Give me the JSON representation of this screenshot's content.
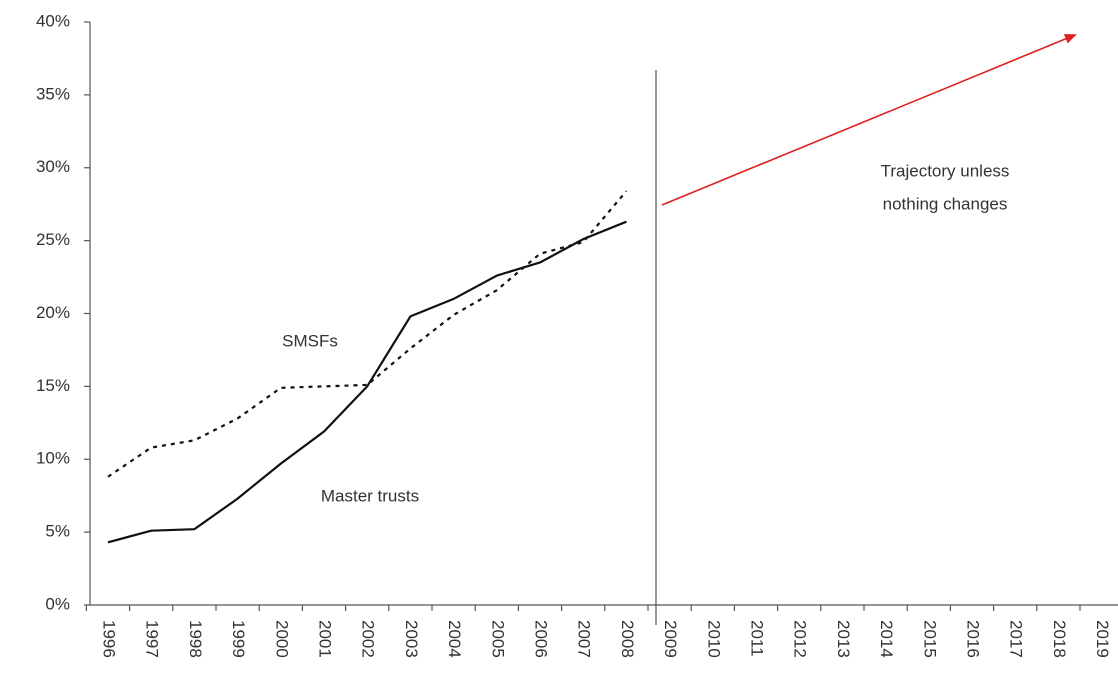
{
  "chart_data": {
    "type": "line",
    "categories": [
      "1996",
      "1997",
      "1998",
      "1999",
      "2000",
      "2001",
      "2002",
      "2003",
      "2004",
      "2005",
      "2006",
      "2007",
      "2008",
      "2009",
      "2010",
      "2011",
      "2012",
      "2013",
      "2014",
      "2015",
      "2016",
      "2017",
      "2018",
      "2019"
    ],
    "series": [
      {
        "name": "Master trusts",
        "color": "#111111",
        "style": "solid",
        "values": [
          4.3,
          5.1,
          5.2,
          7.3,
          9.7,
          11.9,
          15.0,
          19.8,
          21.0,
          22.6,
          23.5,
          25.1,
          26.3,
          null,
          null,
          null,
          null,
          null,
          null,
          null,
          null,
          null,
          null,
          null
        ]
      },
      {
        "name": "SMSFs",
        "color": "#111111",
        "style": "dotted",
        "values": [
          8.8,
          10.8,
          11.3,
          12.8,
          14.9,
          15.0,
          15.1,
          17.6,
          19.9,
          21.6,
          24.1,
          24.9,
          28.4,
          null,
          null,
          null,
          null,
          null,
          null,
          null,
          null,
          null,
          null,
          null
        ]
      }
    ],
    "annotations": [
      [
        "Trajectory unless",
        "nothing changes"
      ]
    ],
    "ylim": [
      0,
      40
    ],
    "yticks": [
      {
        "value": 0,
        "label": "0%"
      },
      {
        "value": 5,
        "label": "5%"
      },
      {
        "value": 10,
        "label": "10%"
      },
      {
        "value": 15,
        "label": "15%"
      },
      {
        "value": 20,
        "label": "20%"
      },
      {
        "value": 25,
        "label": "25%"
      },
      {
        "value": 30,
        "label": "30%"
      },
      {
        "value": 35,
        "label": "35%"
      },
      {
        "value": 40,
        "label": "40%"
      }
    ],
    "grid": false
  }
}
